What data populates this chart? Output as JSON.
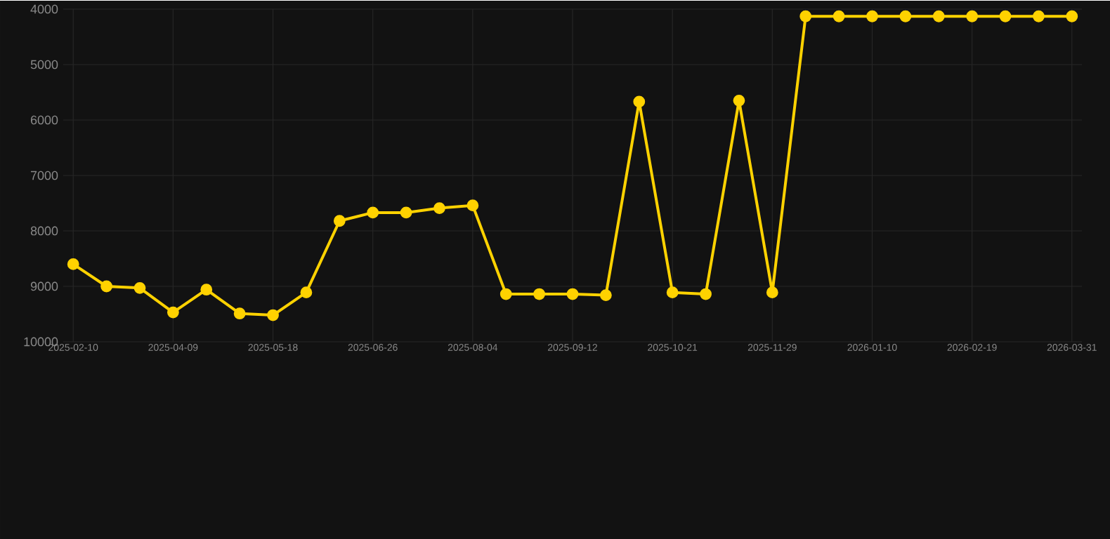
{
  "chart_data": {
    "type": "line",
    "categories": [
      "2025-02-10",
      null,
      null,
      "2025-04-09",
      null,
      null,
      "2025-05-18",
      null,
      null,
      "2025-06-26",
      null,
      null,
      "2025-08-04",
      null,
      null,
      "2025-09-12",
      null,
      null,
      "2025-10-21",
      null,
      null,
      "2025-11-29",
      null,
      null,
      "2026-01-10",
      null,
      null,
      "2026-02-19",
      null,
      null,
      "2026-03-31"
    ],
    "series": [
      {
        "color": "#ffd200",
        "values": [
          8600,
          9000,
          9030,
          9470,
          9060,
          9490,
          9520,
          9110,
          7820,
          7670,
          7670,
          7590,
          7540,
          9140,
          9140,
          9140,
          9160,
          5670,
          9110,
          9140,
          5650,
          9110,
          4130,
          4130,
          4130,
          4130,
          4130,
          4130,
          4130,
          4130,
          4130
        ]
      }
    ],
    "ylim": [
      10000,
      4000
    ],
    "yticks": [
      4000,
      5000,
      6000,
      7000,
      8000,
      9000,
      10000
    ],
    "grid": true,
    "marker": "circle",
    "line_style": "solid"
  }
}
